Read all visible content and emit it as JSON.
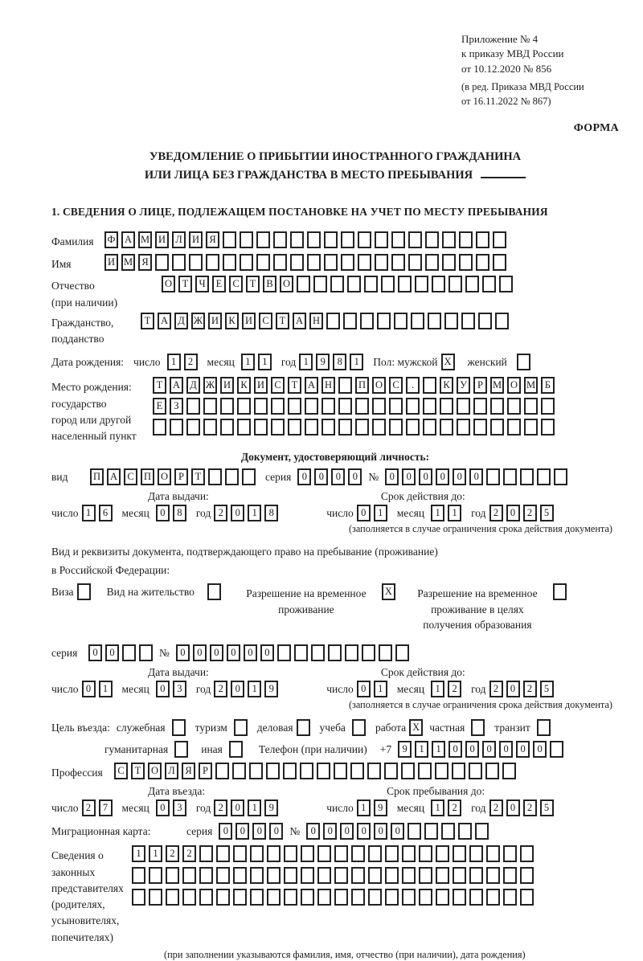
{
  "doc": {
    "ref": [
      "Приложение № 4",
      "к приказу МВД России",
      "от 10.12.2020 № 856"
    ],
    "ref_amend": [
      "(в ред. Приказа МВД России",
      "от 16.11.2022 № 867)"
    ],
    "forma": "ФОРМА",
    "title1": "УВЕДОМЛЕНИЕ О ПРИБЫТИИ ИНОСТРАННОГО ГРАЖДАНИНА",
    "title2": "ИЛИ ЛИЦА БЕЗ ГРАЖДАНСТВА В МЕСТО ПРЕБЫВАНИЯ",
    "section1": "1. СВЕДЕНИЯ О ЛИЦЕ, ПОДЛЕЖАЩЕМ ПОСТАНОВКЕ НА УЧЕТ ПО МЕСТУ ПРЕБЫВАНИЯ"
  },
  "labels": {
    "day": "число",
    "month": "месяц",
    "year": "год",
    "series": "серия",
    "number": "№",
    "issue": "Дата выдачи:",
    "valid": "Срок действия до:",
    "entry": "Дата въезда:",
    "stay": "Срок пребывания до:",
    "limit_note": "(заполняется в случае ограничения срока действия документа)"
  },
  "fields": {
    "surname": {
      "label": "Фамилия",
      "boxes": {
        "chars": "ФАМИЛИЯ",
        "total": 24
      }
    },
    "name": {
      "label": "Имя",
      "boxes": {
        "chars": "ИМЯ",
        "total": 24
      }
    },
    "patronymic": {
      "label": "Отчество",
      "label2": "(при наличии)",
      "boxes": {
        "chars": "ОТЧЕСТВО",
        "total": 21
      }
    },
    "citizenship": {
      "label": "Гражданство,",
      "label2": "подданство",
      "boxes": {
        "chars": "ТАДЖИКИСТАН",
        "total": 22
      }
    },
    "birth": {
      "label": "Дата рождения:",
      "day": "12",
      "month": "11",
      "year": "1981",
      "sex_label": "Пол: мужской",
      "sex_male": "X",
      "sex_female_label": "женский",
      "sex_female": {
        "chars": "",
        "total": 1
      }
    },
    "birthplace": {
      "label_lines": [
        "Место рождения:",
        "государство",
        "город или другой",
        "населенный пункт"
      ],
      "rows": [
        {
          "chars": "ТАДЖИКИСТАН ПОС. КУРМОМБ",
          "total": 24
        },
        {
          "chars": "ЕЗ",
          "total": 24
        },
        {
          "chars": "",
          "total": 24
        }
      ]
    },
    "iddoc": {
      "heading": "Документ, удостоверяющий личность:",
      "type_label": "вид",
      "type": {
        "chars": "ПАСПОРТ",
        "total": 10
      },
      "series": {
        "chars": "0000",
        "total": 4
      },
      "number": {
        "chars": "000000",
        "total": 11
      },
      "issue": {
        "d": "16",
        "m": "08",
        "y": "2018"
      },
      "valid": {
        "d": "01",
        "m": "11",
        "y": "2025"
      }
    },
    "staydoc": {
      "intro1": "Вид и реквизиты документа, подтверждающего право на пребывание (проживание)",
      "intro2": "в Российской Федерации:",
      "opt_visa_label": "Виза",
      "opt_visa": {
        "chars": "",
        "total": 1
      },
      "opt_residence_label": "Вид на жительство",
      "opt_residence": {
        "chars": "",
        "total": 1
      },
      "opt_rvp_label": "Разрешение на временное проживание",
      "opt_rvp": "X",
      "opt_rvpo_label": "Разрешение на временное проживание в целях получения образования",
      "opt_rvpo": {
        "chars": "",
        "total": 1
      },
      "series": {
        "chars": "00",
        "total": 4
      },
      "number": {
        "chars": "000000",
        "total": 14
      },
      "issue": {
        "d": "01",
        "m": "03",
        "y": "2019"
      },
      "valid": {
        "d": "01",
        "m": "12",
        "y": "2025"
      }
    },
    "purpose": {
      "label": "Цель въезда:",
      "opts": [
        {
          "t": "служебная",
          "b": {
            "chars": "",
            "total": 1
          }
        },
        {
          "t": "туризм",
          "b": {
            "chars": "",
            "total": 1
          }
        },
        {
          "t": "деловая",
          "b": {
            "chars": "",
            "total": 1
          }
        },
        {
          "t": "учеба",
          "b": {
            "chars": "",
            "total": 1
          }
        },
        {
          "t": "работа",
          "b": "X"
        },
        {
          "t": "частная",
          "b": {
            "chars": "",
            "total": 1
          }
        },
        {
          "t": "транзит",
          "b": {
            "chars": "",
            "total": 1
          }
        }
      ],
      "opts2": [
        {
          "t": "гуманитарная",
          "b": {
            "chars": "",
            "total": 1
          }
        },
        {
          "t": "иная",
          "b": {
            "chars": "",
            "total": 1
          }
        }
      ],
      "phone_label": "Телефон (при наличии)",
      "phone_prefix": "+7",
      "phone": {
        "chars": "911000000",
        "total": 10
      }
    },
    "profession": {
      "label": "Профессия",
      "boxes": {
        "chars": "СТОЛЯР",
        "total": 24
      }
    },
    "entrydates": {
      "date": {
        "d": "27",
        "m": "03",
        "y": "2019"
      },
      "until": {
        "d": "19",
        "m": "12",
        "y": "2025"
      }
    },
    "migration": {
      "label": "Миграционная карта:",
      "series": {
        "chars": "0000",
        "total": 4
      },
      "number": {
        "chars": "000000",
        "total": 11
      }
    },
    "reps": {
      "label_lines": [
        "Сведения о",
        "законных",
        "представителях",
        "(родителях,",
        "усыновителях,",
        "попечителях)"
      ],
      "rows": [
        {
          "chars": "1122",
          "total": 24
        },
        {
          "chars": "",
          "total": 24
        },
        {
          "chars": "",
          "total": 24
        }
      ],
      "note": "(при заполнении указываются фамилия, имя, отчество (при наличии), дата рождения)"
    }
  }
}
